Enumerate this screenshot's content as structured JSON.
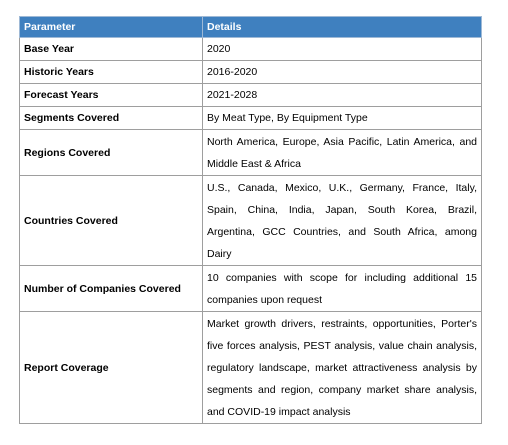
{
  "table": {
    "header": {
      "parameter": "Parameter",
      "details": "Details"
    },
    "rows": [
      {
        "label": "Base Year",
        "value": "2020"
      },
      {
        "label": "Historic Years",
        "value": "2016-2020"
      },
      {
        "label": "Forecast Years",
        "value": "2021-2028"
      },
      {
        "label": "Segments Covered",
        "value": "By Meat Type, By Equipment Type"
      },
      {
        "label": "Regions Covered",
        "value": "North America, Europe, Asia Pacific, Latin America, and Middle East & Africa"
      },
      {
        "label": "Countries Covered",
        "value": "U.S., Canada, Mexico, U.K., Germany, France, Italy, Spain, China, India, Japan, South Korea, Brazil, Argentina, GCC Countries, and South Africa, among Dairy"
      },
      {
        "label": "Number of Companies Covered",
        "value": "10 companies with scope for including additional 15 companies upon request"
      },
      {
        "label": "Report Coverage",
        "value": "Market growth drivers, restraints, opportunities, Porter's five forces analysis, PEST analysis, value chain analysis, regulatory landscape, market attractiveness analysis by segments and region, company market share analysis, and COVID-19 impact analysis"
      }
    ]
  }
}
